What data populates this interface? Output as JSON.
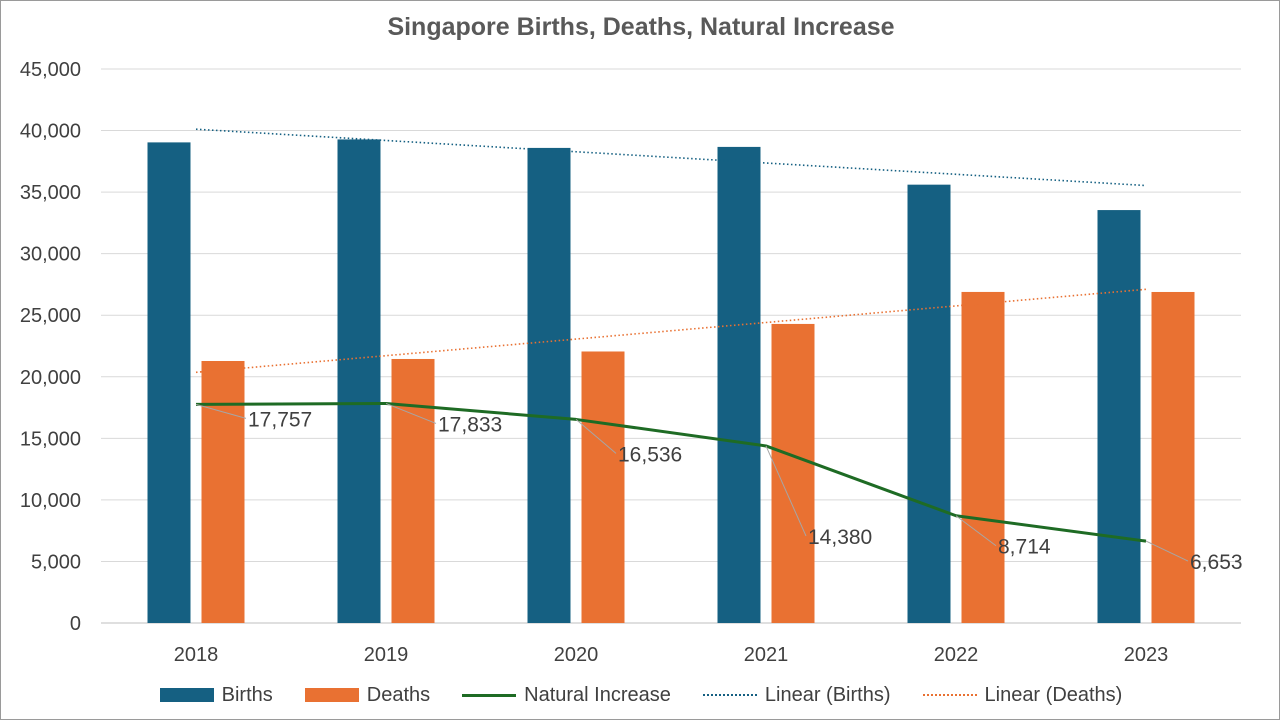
{
  "chart_data": {
    "type": "bar",
    "title": "Singapore Births, Deaths, Natural Increase",
    "categories": [
      "2018",
      "2019",
      "2020",
      "2021",
      "2022",
      "2023"
    ],
    "ylim": [
      0,
      45000
    ],
    "yticks": [
      "0",
      "5,000",
      "10,000",
      "15,000",
      "20,000",
      "25,000",
      "30,000",
      "35,000",
      "40,000",
      "45,000"
    ],
    "grid": true,
    "legend_position": "bottom",
    "series": [
      {
        "name": "Births",
        "kind": "bar",
        "color": "#156082",
        "values": [
          39039,
          39279,
          38590,
          38672,
          35605,
          33541
        ]
      },
      {
        "name": "Deaths",
        "kind": "bar",
        "color": "#E97132",
        "values": [
          21282,
          21446,
          22054,
          24292,
          26891,
          26888
        ]
      },
      {
        "name": "Natural Increase",
        "kind": "line",
        "color": "#1E6B24",
        "values": [
          17757,
          17833,
          16536,
          14380,
          8714,
          6653
        ],
        "labels": [
          "17,757",
          "17,833",
          "16,536",
          "14,380",
          "8,714",
          "6,653"
        ]
      },
      {
        "name": "Linear (Births)",
        "kind": "trend",
        "style": "dotted",
        "color": "#156082",
        "values": [
          40110,
          39194,
          38279,
          37364,
          36448,
          35533
        ]
      },
      {
        "name": "Linear (Deaths)",
        "kind": "trend",
        "style": "dotted",
        "color": "#E97132",
        "values": [
          20366,
          21714,
          23062,
          24410,
          25758,
          27106
        ]
      }
    ]
  }
}
